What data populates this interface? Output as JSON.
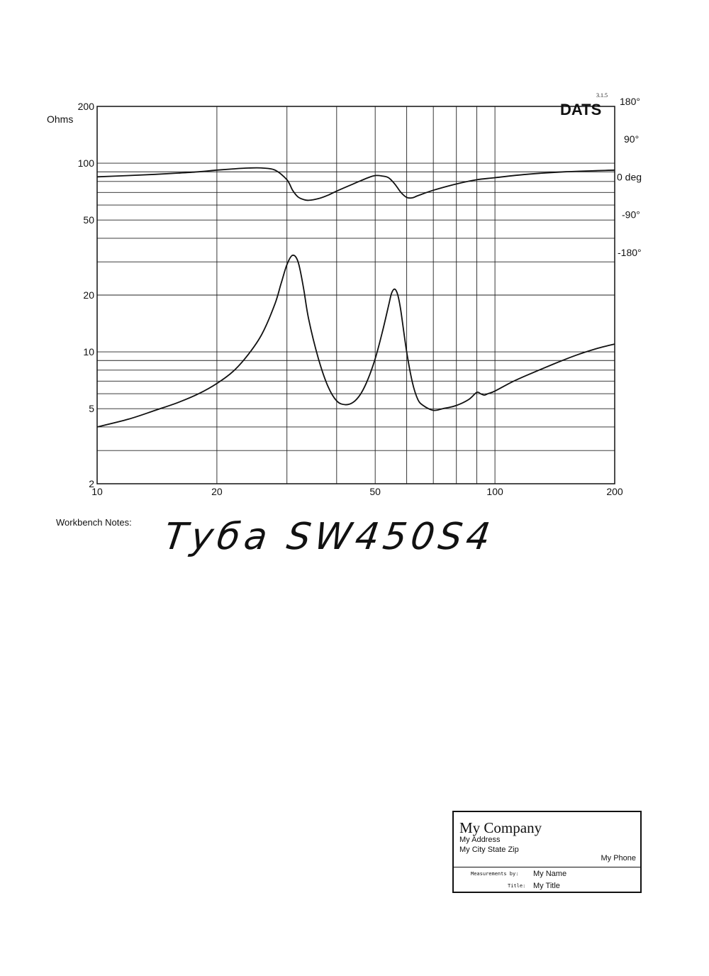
{
  "chart_data": {
    "type": "line",
    "brand": "DATS",
    "version": "3.1.5",
    "x_scale": "log",
    "y_scale": "log",
    "xlim": [
      10,
      200
    ],
    "ylim": [
      2,
      200
    ],
    "y2lim": [
      -180,
      180
    ],
    "x_ticks": [
      10,
      20,
      50,
      100,
      200
    ],
    "x_tick_labels": [
      "10",
      "20",
      "50",
      "100",
      "200"
    ],
    "y_ticks": [
      2,
      5,
      10,
      20,
      50,
      100,
      200
    ],
    "y_tick_labels": [
      "2",
      "5",
      "10",
      "20",
      "50",
      "100",
      "200"
    ],
    "y_unit": "Ohms",
    "y2_ticks": [
      180,
      90,
      0,
      -90,
      -180
    ],
    "y2_tick_labels": [
      "180°",
      "90°",
      "0 deg",
      "-90°",
      "-180°"
    ],
    "grid": true,
    "series": [
      {
        "key": "impedance",
        "axis": "left",
        "x": [
          10,
          12,
          14,
          16,
          18,
          20,
          22,
          24,
          26,
          28,
          29,
          30,
          31,
          32,
          33,
          34,
          36,
          38,
          40,
          42,
          44,
          46,
          48,
          50,
          52,
          54,
          55,
          56,
          57,
          58,
          60,
          62,
          64,
          66,
          70,
          74,
          80,
          86,
          90,
          92,
          94,
          96,
          100,
          110,
          120,
          140,
          160,
          180,
          200
        ],
        "y": [
          4.0,
          4.4,
          4.9,
          5.4,
          6.0,
          6.8,
          7.9,
          9.7,
          12.5,
          18.0,
          23.0,
          29.0,
          32.5,
          30.0,
          22.0,
          15.0,
          9.2,
          6.6,
          5.5,
          5.25,
          5.4,
          6.0,
          7.2,
          9.2,
          12.5,
          17.5,
          20.5,
          21.5,
          20.0,
          16.5,
          10.0,
          6.9,
          5.6,
          5.2,
          4.9,
          5.0,
          5.2,
          5.6,
          6.1,
          6.0,
          5.9,
          6.0,
          6.2,
          6.9,
          7.5,
          8.6,
          9.6,
          10.4,
          11.0
        ]
      },
      {
        "key": "phase",
        "axis": "right",
        "x": [
          10,
          12,
          14,
          16,
          18,
          20,
          22,
          24,
          26,
          28,
          30,
          31,
          32,
          33,
          34,
          36,
          38,
          40,
          44,
          48,
          50,
          52,
          54,
          56,
          58,
          60,
          62,
          64,
          70,
          80,
          90,
          100,
          120,
          150,
          200
        ],
        "y": [
          12,
          15,
          18,
          21,
          24,
          28,
          31,
          33,
          33,
          28,
          5,
          -20,
          -36,
          -42,
          -44,
          -40,
          -32,
          -22,
          -5,
          10,
          15,
          14,
          10,
          -5,
          -25,
          -37,
          -38,
          -33,
          -20,
          -5,
          5,
          10,
          18,
          24,
          28
        ]
      }
    ]
  },
  "notes": {
    "label": "Workbench Notes:",
    "handwriting": "Tуба SW450S4"
  },
  "title_block": {
    "company": "My Company",
    "address": "My Address",
    "city": "My City State Zip",
    "phone": "My Phone",
    "measurements_by_label": "Measurements by:",
    "measurements_by": "My Name",
    "title_label": "Title:",
    "title": "My Title"
  },
  "colors": {
    "line": "#111111",
    "grid": "#222222",
    "background": "#ffffff"
  }
}
